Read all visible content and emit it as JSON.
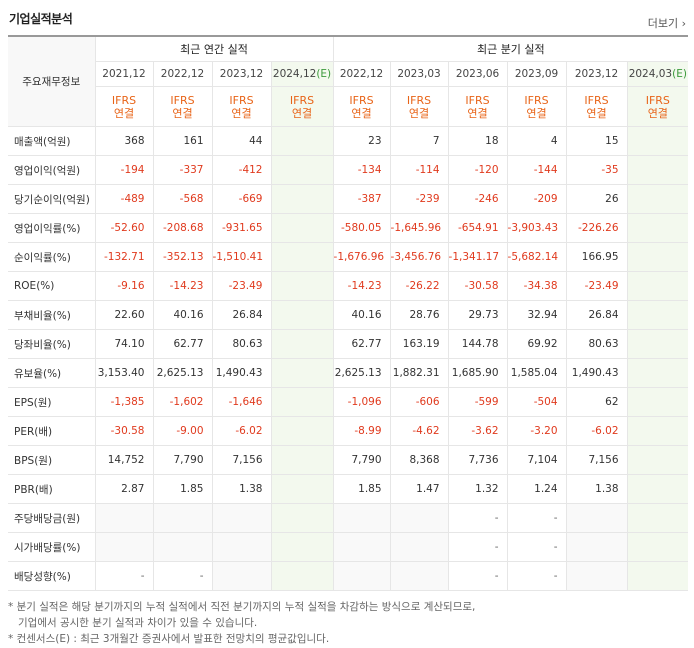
{
  "header": {
    "title": "기업실적분석",
    "more": "더보기"
  },
  "table": {
    "corner": "주요재무정보",
    "annual": {
      "label": "최근 연간 실적",
      "columns": [
        {
          "period": "2021,12",
          "standard": "IFRS",
          "basis": "연결"
        },
        {
          "period": "2022,12",
          "standard": "IFRS",
          "basis": "연결"
        },
        {
          "period": "2023,12",
          "standard": "IFRS",
          "basis": "연결"
        },
        {
          "period": "2024,12",
          "estimate": "(E)",
          "standard": "IFRS",
          "basis": "연결"
        }
      ]
    },
    "quarterly": {
      "label": "최근 분기 실적",
      "columns": [
        {
          "period": "2022,12",
          "standard": "IFRS",
          "basis": "연결"
        },
        {
          "period": "2023,03",
          "standard": "IFRS",
          "basis": "연결"
        },
        {
          "period": "2023,06",
          "standard": "IFRS",
          "basis": "연결"
        },
        {
          "period": "2023,09",
          "standard": "IFRS",
          "basis": "연결"
        },
        {
          "period": "2023,12",
          "standard": "IFRS",
          "basis": "연결"
        },
        {
          "period": "2024,03",
          "estimate": "(E)",
          "standard": "IFRS",
          "basis": "연결"
        }
      ]
    },
    "rows": [
      {
        "label": "매출액(억원)",
        "annual": [
          "368",
          "161",
          "44",
          null
        ],
        "quarterly": [
          "23",
          "7",
          "18",
          "4",
          "15",
          null
        ]
      },
      {
        "label": "영업이익(억원)",
        "annual": [
          "-194",
          "-337",
          "-412",
          null
        ],
        "quarterly": [
          "-134",
          "-114",
          "-120",
          "-144",
          "-35",
          null
        ]
      },
      {
        "label": "당기순이익(억원)",
        "annual": [
          "-489",
          "-568",
          "-669",
          null
        ],
        "quarterly": [
          "-387",
          "-239",
          "-246",
          "-209",
          "26",
          null
        ]
      },
      {
        "label": "영업이익률(%)",
        "annual": [
          "-52.60",
          "-208.68",
          "-931.65",
          null
        ],
        "quarterly": [
          "-580.05",
          "-1,645.96",
          "-654.91",
          "-3,903.43",
          "-226.26",
          null
        ]
      },
      {
        "label": "순이익률(%)",
        "annual": [
          "-132.71",
          "-352.13",
          "-1,510.41",
          null
        ],
        "quarterly": [
          "-1,676.96",
          "-3,456.76",
          "-1,341.17",
          "-5,682.14",
          "166.95",
          null
        ]
      },
      {
        "label": "ROE(%)",
        "annual": [
          "-9.16",
          "-14.23",
          "-23.49",
          null
        ],
        "quarterly": [
          "-14.23",
          "-26.22",
          "-30.58",
          "-34.38",
          "-23.49",
          null
        ]
      },
      {
        "label": "부채비율(%)",
        "annual": [
          "22.60",
          "40.16",
          "26.84",
          null
        ],
        "quarterly": [
          "40.16",
          "28.76",
          "29.73",
          "32.94",
          "26.84",
          null
        ]
      },
      {
        "label": "당좌비율(%)",
        "annual": [
          "74.10",
          "62.77",
          "80.63",
          null
        ],
        "quarterly": [
          "62.77",
          "163.19",
          "144.78",
          "69.92",
          "80.63",
          null
        ]
      },
      {
        "label": "유보율(%)",
        "annual": [
          "3,153.40",
          "2,625.13",
          "1,490.43",
          null
        ],
        "quarterly": [
          "2,625.13",
          "1,882.31",
          "1,685.90",
          "1,585.04",
          "1,490.43",
          null
        ]
      },
      {
        "label": "EPS(원)",
        "annual": [
          "-1,385",
          "-1,602",
          "-1,646",
          null
        ],
        "quarterly": [
          "-1,096",
          "-606",
          "-599",
          "-504",
          "62",
          null
        ]
      },
      {
        "label": "PER(배)",
        "annual": [
          "-30.58",
          "-9.00",
          "-6.02",
          null
        ],
        "quarterly": [
          "-8.99",
          "-4.62",
          "-3.62",
          "-3.20",
          "-6.02",
          null
        ]
      },
      {
        "label": "BPS(원)",
        "annual": [
          "14,752",
          "7,790",
          "7,156",
          null
        ],
        "quarterly": [
          "7,790",
          "8,368",
          "7,736",
          "7,104",
          "7,156",
          null
        ]
      },
      {
        "label": "PBR(배)",
        "annual": [
          "2.87",
          "1.85",
          "1.38",
          null
        ],
        "quarterly": [
          "1.85",
          "1.47",
          "1.32",
          "1.24",
          "1.38",
          null
        ]
      },
      {
        "label": "주당배당금(원)",
        "annual": [
          null,
          null,
          null,
          null
        ],
        "quarterly": [
          null,
          null,
          "-",
          "-",
          null,
          null
        ]
      },
      {
        "label": "시가배당률(%)",
        "annual": [
          null,
          null,
          null,
          null
        ],
        "quarterly": [
          null,
          null,
          "-",
          "-",
          null,
          null
        ]
      },
      {
        "label": "배당성향(%)",
        "annual": [
          "-",
          "-",
          null,
          null
        ],
        "quarterly": [
          null,
          null,
          "-",
          "-",
          null,
          null
        ]
      }
    ]
  },
  "notes": [
    "* 분기 실적은 해당 분기까지의 누적 실적에서 직전 분기까지의 누적 실적을 차감하는 방식으로 계산되므로,",
    "기업에서 공시한 분기 실적과 차이가 있을 수 있습니다.",
    "* 컨센서스(E) : 최근 3개월간 증권사에서 발표한 전망치의 평균값입니다."
  ]
}
